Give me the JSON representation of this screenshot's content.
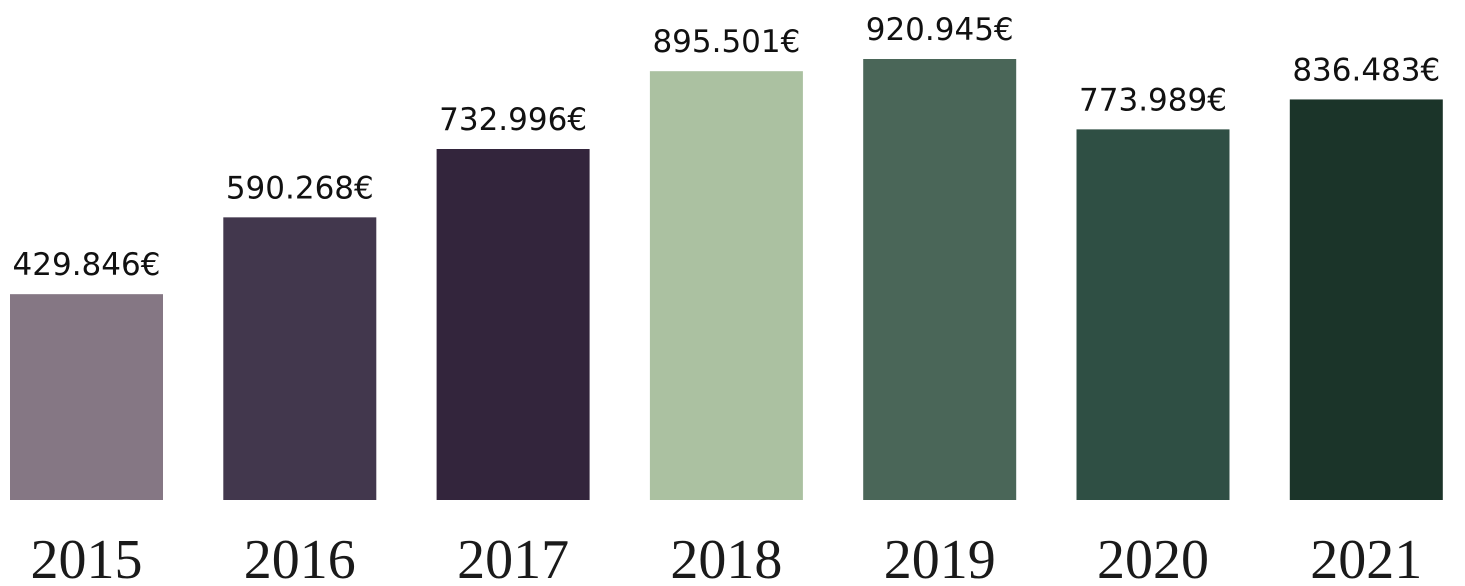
{
  "chart_data": {
    "type": "bar",
    "categories": [
      "2015",
      "2016",
      "2017",
      "2018",
      "2019",
      "2020",
      "2021"
    ],
    "values": [
      429846,
      590268,
      732996,
      895501,
      920945,
      773989,
      836483
    ],
    "value_labels": [
      "429.846€",
      "590.268€",
      "732.996€",
      "895.501€",
      "920.945€",
      "773.989€",
      "836.483€"
    ],
    "colors": [
      "#857784",
      "#42374d",
      "#33253c",
      "#abc1a1",
      "#4a6658",
      "#2f4f44",
      "#1b3429"
    ]
  }
}
